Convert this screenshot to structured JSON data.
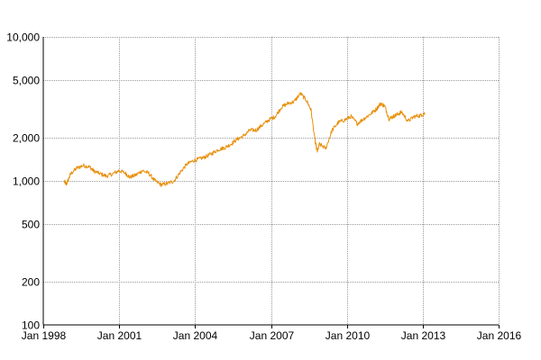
{
  "chart_data": {
    "type": "line",
    "title": "",
    "xlabel": "",
    "ylabel": "",
    "y_scale": "log",
    "ylim": [
      100,
      10000
    ],
    "xlim": [
      "Jan 1998",
      "Jan 2016"
    ],
    "grid": true,
    "y_ticks": [
      {
        "value": 100,
        "label": "100"
      },
      {
        "value": 200,
        "label": "200"
      },
      {
        "value": 500,
        "label": "500"
      },
      {
        "value": 1000,
        "label": "1,000"
      },
      {
        "value": 2000,
        "label": "2,000"
      },
      {
        "value": 5000,
        "label": "5,000"
      },
      {
        "value": 10000,
        "label": "10,000"
      }
    ],
    "x_ticks": [
      {
        "value": 1998,
        "label": "Jan 1998"
      },
      {
        "value": 2001,
        "label": "Jan 2001"
      },
      {
        "value": 2004,
        "label": "Jan 2004"
      },
      {
        "value": 2007,
        "label": "Jan 2007"
      },
      {
        "value": 2010,
        "label": "Jan 2010"
      },
      {
        "value": 2013,
        "label": "Jan 2013"
      },
      {
        "value": 2016,
        "label": "Jan 2016"
      }
    ],
    "series": [
      {
        "color": "#e8900c",
        "points": [
          {
            "x": "Nov 1998",
            "y": 990
          },
          {
            "x": "Dec 1998",
            "y": 950
          },
          {
            "x": "Feb 1999",
            "y": 1120
          },
          {
            "x": "May 1999",
            "y": 1230
          },
          {
            "x": "Aug 1999",
            "y": 1280
          },
          {
            "x": "Nov 1999",
            "y": 1250
          },
          {
            "x": "Jan 2000",
            "y": 1170
          },
          {
            "x": "Apr 2000",
            "y": 1120
          },
          {
            "x": "Jul 2000",
            "y": 1080
          },
          {
            "x": "Oct 2000",
            "y": 1120
          },
          {
            "x": "Jan 2001",
            "y": 1180
          },
          {
            "x": "Apr 2001",
            "y": 1130
          },
          {
            "x": "Jun 2001",
            "y": 1060
          },
          {
            "x": "Sep 2001",
            "y": 1100
          },
          {
            "x": "Dec 2001",
            "y": 1180
          },
          {
            "x": "Mar 2002",
            "y": 1130
          },
          {
            "x": "Jun 2002",
            "y": 1000
          },
          {
            "x": "Sep 2002",
            "y": 940
          },
          {
            "x": "Dec 2002",
            "y": 960
          },
          {
            "x": "Mar 2003",
            "y": 1000
          },
          {
            "x": "Jun 2003",
            "y": 1150
          },
          {
            "x": "Sep 2003",
            "y": 1300
          },
          {
            "x": "Dec 2003",
            "y": 1380
          },
          {
            "x": "Mar 2004",
            "y": 1420
          },
          {
            "x": "Jun 2004",
            "y": 1470
          },
          {
            "x": "Sep 2004",
            "y": 1550
          },
          {
            "x": "Dec 2004",
            "y": 1650
          },
          {
            "x": "Mar 2005",
            "y": 1700
          },
          {
            "x": "Jun 2005",
            "y": 1800
          },
          {
            "x": "Sep 2005",
            "y": 1950
          },
          {
            "x": "Dec 2005",
            "y": 2050
          },
          {
            "x": "Mar 2006",
            "y": 2250
          },
          {
            "x": "Jun 2006",
            "y": 2250
          },
          {
            "x": "Sep 2006",
            "y": 2450
          },
          {
            "x": "Dec 2006",
            "y": 2650
          },
          {
            "x": "Mar 2007",
            "y": 2800
          },
          {
            "x": "Jun 2007",
            "y": 3250
          },
          {
            "x": "Sep 2007",
            "y": 3450
          },
          {
            "x": "Dec 2007",
            "y": 3550
          },
          {
            "x": "Mar 2008",
            "y": 4050
          },
          {
            "x": "Jun 2008",
            "y": 3600
          },
          {
            "x": "Aug 2008",
            "y": 3100
          },
          {
            "x": "Oct 2008",
            "y": 1850
          },
          {
            "x": "Nov 2008",
            "y": 1600
          },
          {
            "x": "Dec 2008",
            "y": 1800
          },
          {
            "x": "Mar 2009",
            "y": 1680
          },
          {
            "x": "Jun 2009",
            "y": 2250
          },
          {
            "x": "Sep 2009",
            "y": 2550
          },
          {
            "x": "Dec 2009",
            "y": 2650
          },
          {
            "x": "Mar 2010",
            "y": 2800
          },
          {
            "x": "Jun 2010",
            "y": 2500
          },
          {
            "x": "Sep 2010",
            "y": 2700
          },
          {
            "x": "Dec 2010",
            "y": 2900
          },
          {
            "x": "Mar 2011",
            "y": 3150
          },
          {
            "x": "May 2011",
            "y": 3450
          },
          {
            "x": "Jul 2011",
            "y": 3300
          },
          {
            "x": "Sep 2011",
            "y": 2700
          },
          {
            "x": "Nov 2011",
            "y": 2800
          },
          {
            "x": "Jan 2012",
            "y": 2900
          },
          {
            "x": "Mar 2012",
            "y": 3000
          },
          {
            "x": "Jun 2012",
            "y": 2600
          },
          {
            "x": "Sep 2012",
            "y": 2800
          },
          {
            "x": "Dec 2012",
            "y": 2850
          },
          {
            "x": "Feb 2013",
            "y": 2950
          }
        ]
      }
    ]
  }
}
